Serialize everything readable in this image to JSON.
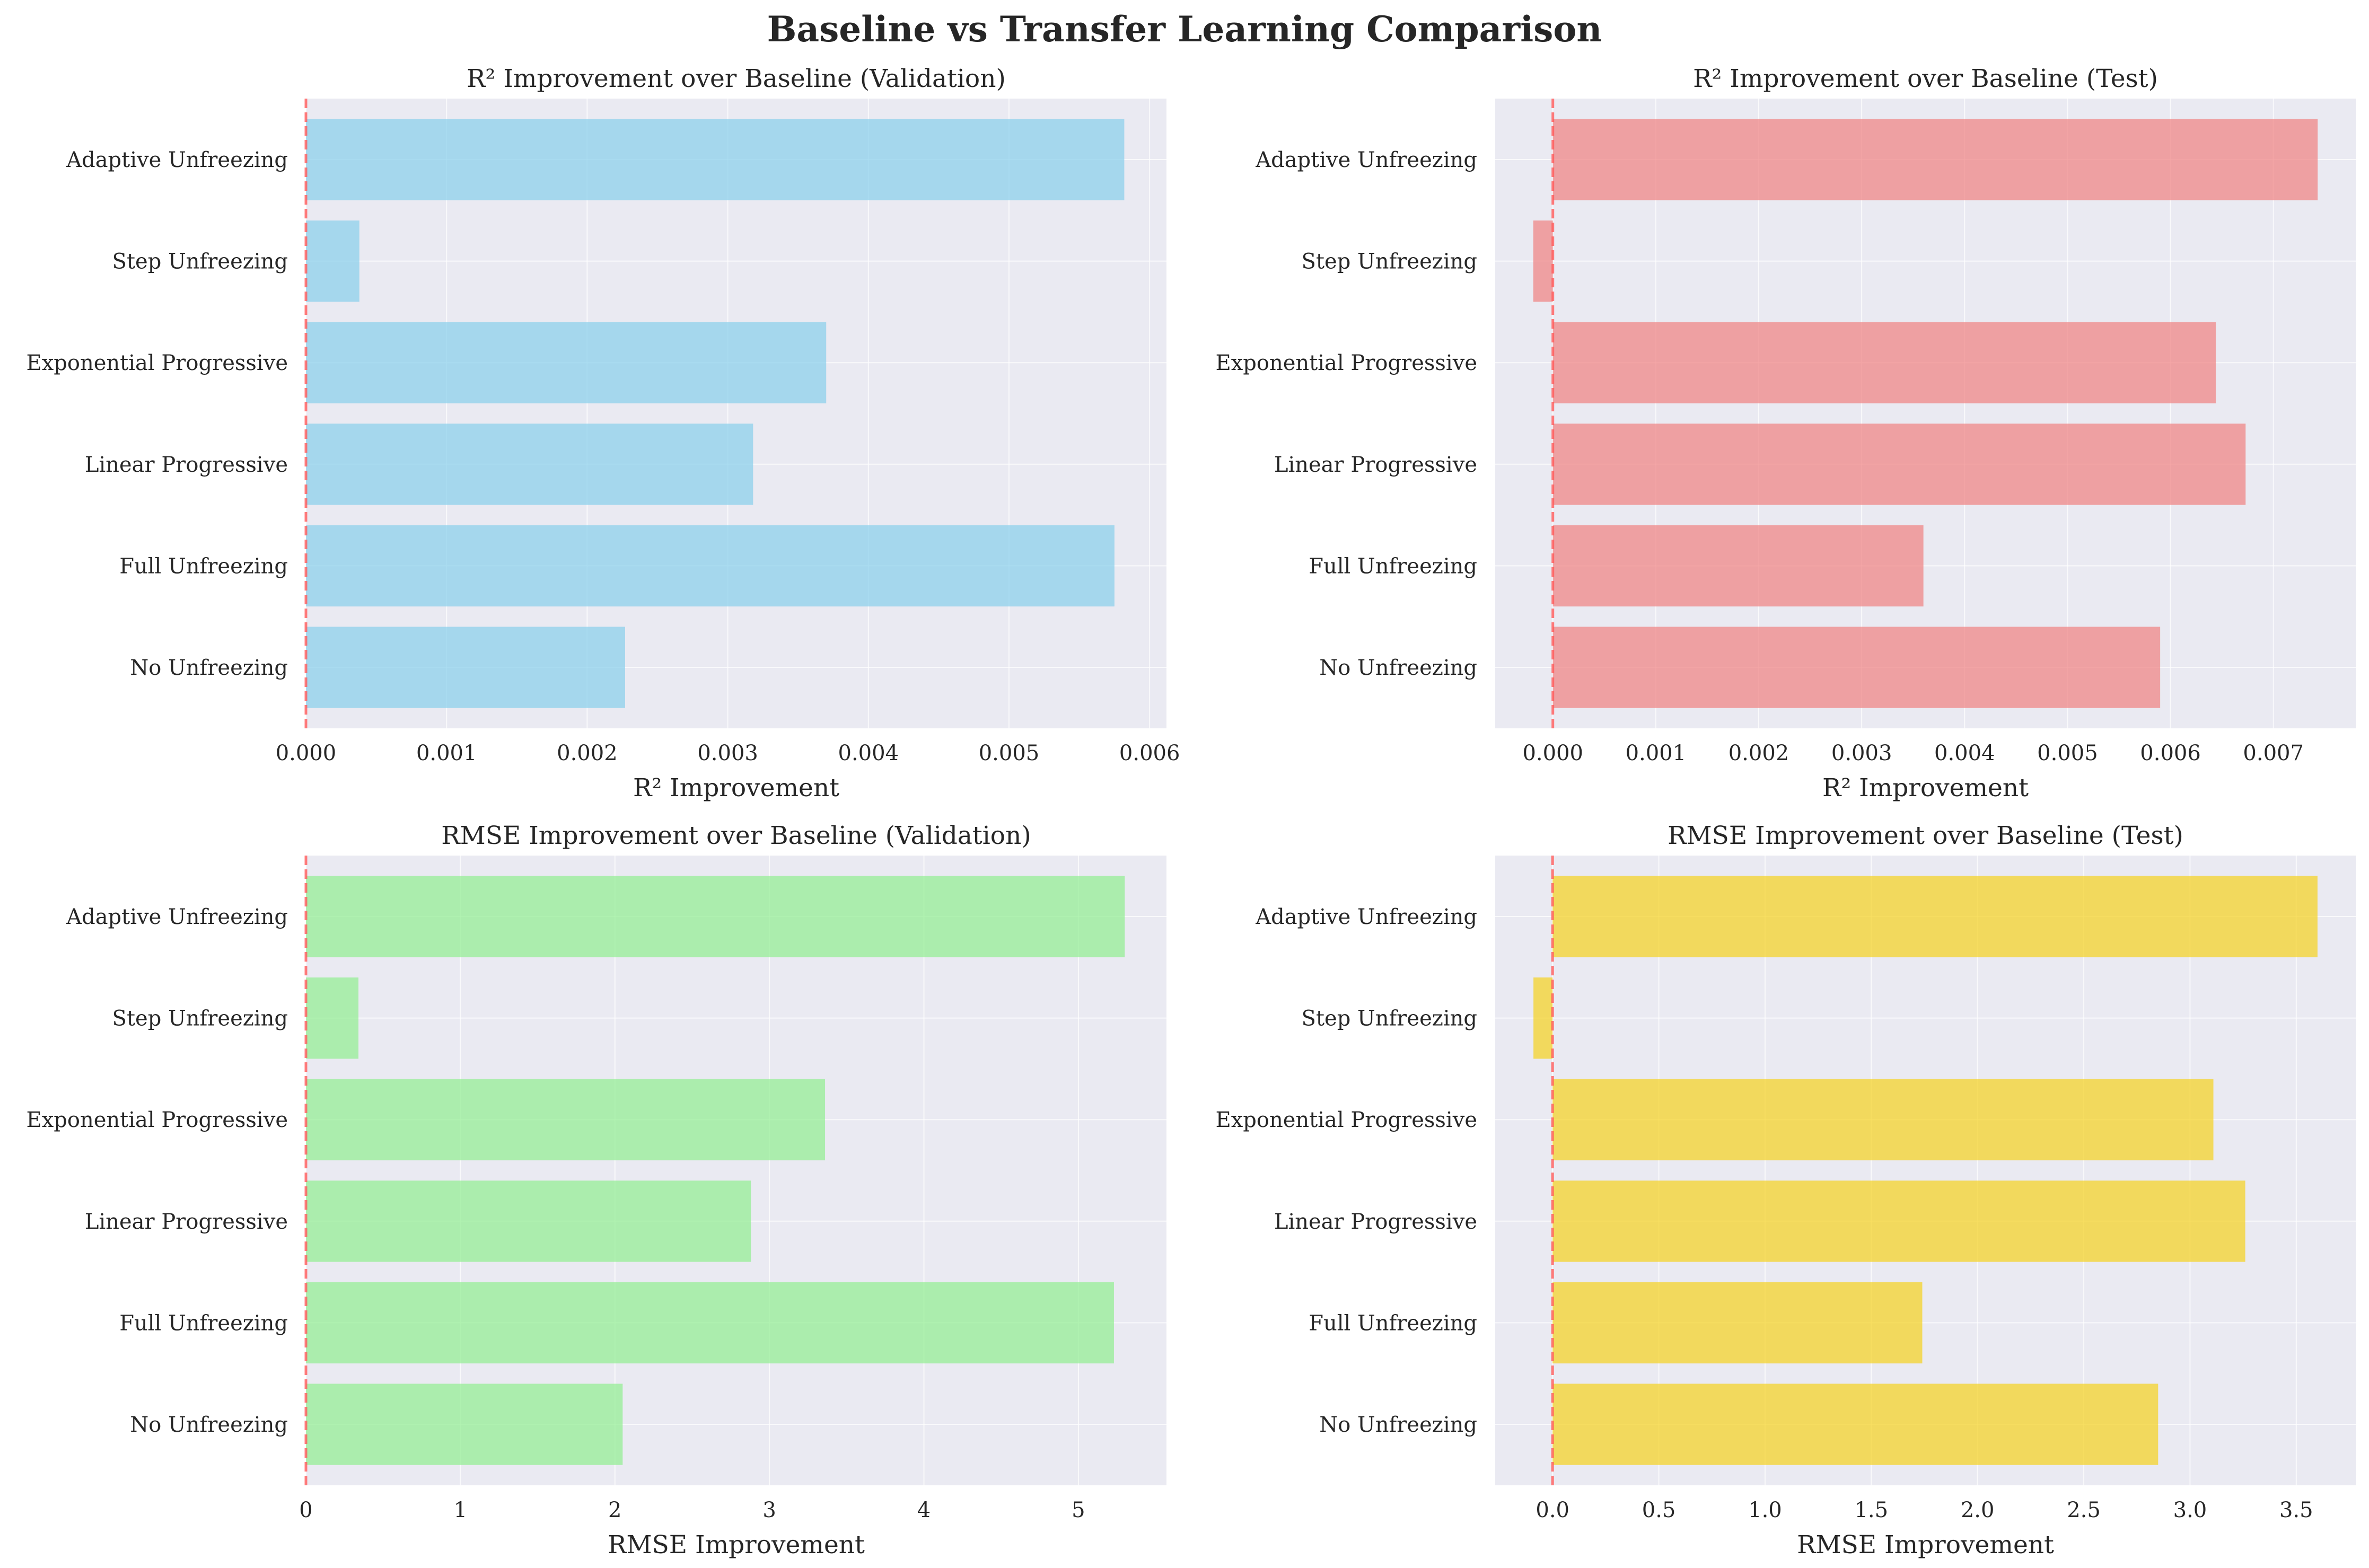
{
  "figure": {
    "title": "Baseline vs Transfer Learning Comparison"
  },
  "chart_data": [
    {
      "type": "bar",
      "orientation": "horizontal",
      "title": "R² Improvement over Baseline (Validation)",
      "xlabel": "R² Improvement",
      "ylabel": "",
      "categories": [
        "No Unfreezing",
        "Full Unfreezing",
        "Linear Progressive",
        "Exponential Progressive",
        "Step Unfreezing",
        "Adaptive Unfreezing"
      ],
      "values": [
        0.00227,
        0.00575,
        0.00318,
        0.0037,
        0.00038,
        0.00582
      ],
      "xlim": [
        0,
        0.00612
      ],
      "xticks": [
        0,
        0.001,
        0.002,
        0.003,
        0.004,
        0.005,
        0.006
      ],
      "xtick_labels": [
        "0.000",
        "0.001",
        "0.002",
        "0.003",
        "0.004",
        "0.005",
        "0.006"
      ],
      "color": "#87CEEB",
      "reference_line": 0,
      "grid": true
    },
    {
      "type": "bar",
      "orientation": "horizontal",
      "title": "R² Improvement over Baseline (Test)",
      "xlabel": "R² Improvement",
      "ylabel": "",
      "categories": [
        "No Unfreezing",
        "Full Unfreezing",
        "Linear Progressive",
        "Exponential Progressive",
        "Step Unfreezing",
        "Adaptive Unfreezing"
      ],
      "values": [
        0.0059,
        0.0036,
        0.00673,
        0.00644,
        -0.00019,
        0.00743
      ],
      "xlim": [
        -0.00056,
        0.0078
      ],
      "xticks": [
        0,
        0.001,
        0.002,
        0.003,
        0.004,
        0.005,
        0.006,
        0.007
      ],
      "xtick_labels": [
        "0.000",
        "0.001",
        "0.002",
        "0.003",
        "0.004",
        "0.005",
        "0.006",
        "0.007"
      ],
      "color": "#F08080",
      "reference_line": 0,
      "grid": true
    },
    {
      "type": "bar",
      "orientation": "horizontal",
      "title": "RMSE Improvement over Baseline (Validation)",
      "xlabel": "RMSE Improvement",
      "ylabel": "",
      "categories": [
        "No Unfreezing",
        "Full Unfreezing",
        "Linear Progressive",
        "Exponential Progressive",
        "Step Unfreezing",
        "Adaptive Unfreezing"
      ],
      "values": [
        2.05,
        5.23,
        2.88,
        3.36,
        0.34,
        5.3
      ],
      "xlim": [
        0,
        5.57
      ],
      "xticks": [
        0,
        1,
        2,
        3,
        4,
        5
      ],
      "xtick_labels": [
        "0",
        "1",
        "2",
        "3",
        "4",
        "5"
      ],
      "color": "#90EE90",
      "reference_line": 0,
      "grid": true
    },
    {
      "type": "bar",
      "orientation": "horizontal",
      "title": "RMSE Improvement over Baseline (Test)",
      "xlabel": "RMSE Improvement",
      "ylabel": "",
      "categories": [
        "No Unfreezing",
        "Full Unfreezing",
        "Linear Progressive",
        "Exponential Progressive",
        "Step Unfreezing",
        "Adaptive Unfreezing"
      ],
      "values": [
        2.85,
        1.74,
        3.26,
        3.11,
        -0.09,
        3.6
      ],
      "xlim": [
        -0.27,
        3.78
      ],
      "xticks": [
        0,
        0.5,
        1,
        1.5,
        2,
        2.5,
        3,
        3.5
      ],
      "xtick_labels": [
        "0.0",
        "0.5",
        "1.0",
        "1.5",
        "2.0",
        "2.5",
        "3.0",
        "3.5"
      ],
      "color": "#F5D21E",
      "reference_line": 0,
      "grid": true
    }
  ]
}
